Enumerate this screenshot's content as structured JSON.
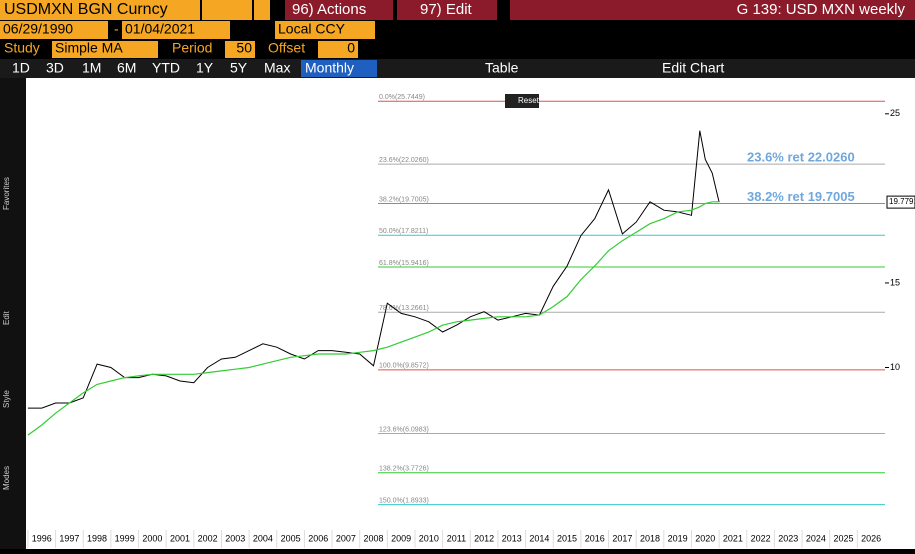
{
  "header": {
    "ticker": "USDMXN BGN Curncy",
    "actions": "96) Actions",
    "edit": "97) Edit",
    "function": "G 139: USD MXN weekly"
  },
  "row2": {
    "start": "06/29/1990",
    "sep": "-",
    "end": "01/04/2021",
    "ccy": "Local CCY"
  },
  "row3": {
    "study_label": "Study",
    "study": "Simple MA",
    "period_label": "Period",
    "period": "50",
    "offset_label": "Offset",
    "offset": "0"
  },
  "row4": {
    "ranges": [
      "1D",
      "3D",
      "1M",
      "6M",
      "YTD",
      "1Y",
      "5Y",
      "Max"
    ],
    "freq": "Monthly",
    "table": "Table",
    "edit_chart": "Edit Chart"
  },
  "popup": {
    "reset": "Reset"
  },
  "side": {
    "favorites": "Favorites",
    "edit": "Edit",
    "style": "Style",
    "modes": "Modes"
  },
  "chart_data": {
    "type": "line",
    "x": [
      1996.0,
      1996.5,
      1997.0,
      1997.5,
      1998.0,
      1998.5,
      1999.0,
      1999.5,
      2000.0,
      2000.5,
      2001.0,
      2001.5,
      2002.0,
      2002.5,
      2003.0,
      2003.5,
      2004.0,
      2004.5,
      2005.0,
      2005.5,
      2006.0,
      2006.5,
      2007.0,
      2007.5,
      2008.0,
      2008.5,
      2009.0,
      2009.5,
      2010.0,
      2010.5,
      2011.0,
      2011.5,
      2012.0,
      2012.5,
      2013.0,
      2013.5,
      2014.0,
      2014.5,
      2015.0,
      2015.5,
      2016.0,
      2016.5,
      2017.0,
      2017.5,
      2018.0,
      2018.5,
      2019.0,
      2019.5,
      2020.0,
      2020.3,
      2020.5,
      2020.75,
      2021.0
    ],
    "series": [
      {
        "name": "USDMXN",
        "color": "#000000",
        "values": [
          7.6,
          7.6,
          7.9,
          7.9,
          8.2,
          10.2,
          10.0,
          9.4,
          9.4,
          9.6,
          9.5,
          9.2,
          9.1,
          10.0,
          10.5,
          10.6,
          11.0,
          11.4,
          11.2,
          10.8,
          10.5,
          11.0,
          11.0,
          10.9,
          10.8,
          10.1,
          13.8,
          13.2,
          13.0,
          12.7,
          12.1,
          12.5,
          13.0,
          13.3,
          12.8,
          13.0,
          13.2,
          13.1,
          14.8,
          16.0,
          17.8,
          18.8,
          20.5,
          17.9,
          18.6,
          19.8,
          19.3,
          19.2,
          19.0,
          24.0,
          22.3,
          21.5,
          19.78
        ]
      },
      {
        "name": "Simple MA",
        "color": "#33cc33",
        "values": [
          6.0,
          6.6,
          7.3,
          7.9,
          8.5,
          9.0,
          9.2,
          9.4,
          9.5,
          9.6,
          9.6,
          9.6,
          9.6,
          9.7,
          9.8,
          9.9,
          10.0,
          10.2,
          10.4,
          10.6,
          10.7,
          10.8,
          10.8,
          10.8,
          10.9,
          11.0,
          11.2,
          11.5,
          11.8,
          12.1,
          12.5,
          12.7,
          12.8,
          12.9,
          13.0,
          13.0,
          13.0,
          13.1,
          13.6,
          14.2,
          15.2,
          16.0,
          16.9,
          17.5,
          18.0,
          18.5,
          18.8,
          19.2,
          19.3,
          19.5,
          19.7,
          19.8,
          19.8
        ]
      }
    ],
    "xlim": [
      1995.93,
      2027.0
    ],
    "xticks": [
      1996,
      1997,
      1998,
      1999,
      2000,
      2001,
      2002,
      2003,
      2004,
      2005,
      2006,
      2007,
      2008,
      2009,
      2010,
      2011,
      2012,
      2013,
      2014,
      2015,
      2016,
      2017,
      2018,
      2019,
      2020,
      2021,
      2022,
      2023,
      2024,
      2025,
      2026
    ],
    "ylim": [
      1.1,
      27.0
    ],
    "yticks": [
      10,
      15,
      25
    ],
    "last_price": 19.7791,
    "levels": [
      {
        "label": "0.0%(25.7449)",
        "value": 25.7449,
        "color": "#e05050"
      },
      {
        "label": "23.6%(22.0260)",
        "value": 22.026,
        "color": "#aaaaaa",
        "ret_label": "23.6% ret 22.0260"
      },
      {
        "label": "38.2%(19.7005)",
        "value": 19.7005,
        "color": "#33cc33",
        "ret_label": "38.2% ret 19.7005"
      },
      {
        "label": "50.0%(17.8211)",
        "value": 17.8211,
        "color": "#33cccc"
      },
      {
        "label": "61.8%(15.9416)",
        "value": 15.9416,
        "color": "#33cc33"
      },
      {
        "label": "78.6%(13.2661)",
        "value": 13.2661,
        "color": "#aaaaaa"
      },
      {
        "label": "100.0%(9.8572)",
        "value": 9.8572,
        "color": "#e05050"
      },
      {
        "label": "123.6%(6.0983)",
        "value": 6.0983,
        "color": "#aaaaaa"
      },
      {
        "label": "138.2%(3.7726)",
        "value": 3.7726,
        "color": "#33cc33"
      },
      {
        "label": "150.0%(1.8933)",
        "value": 1.8933,
        "color": "#33cccc"
      }
    ]
  }
}
